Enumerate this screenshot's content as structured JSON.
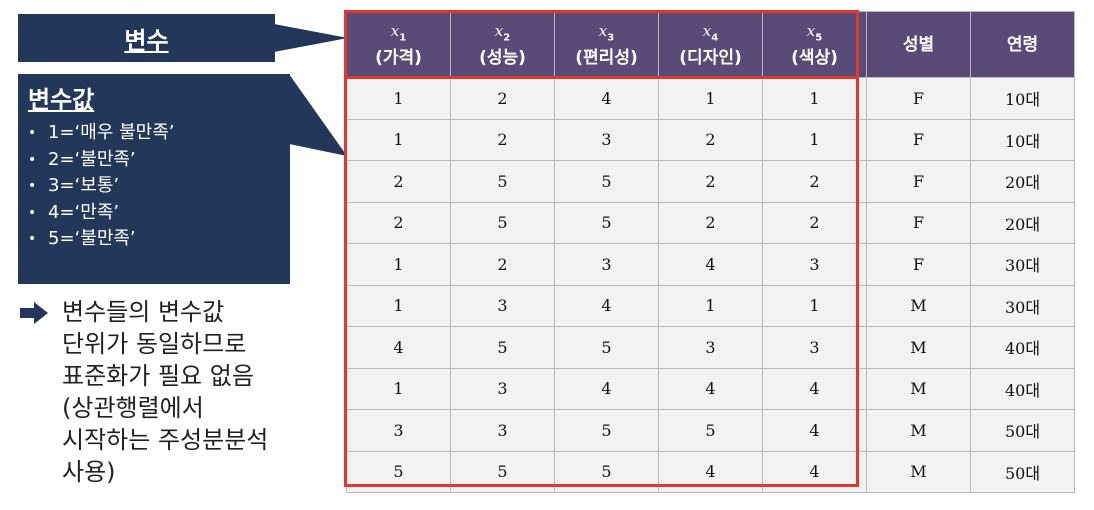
{
  "callouts": {
    "variable_title": "변수",
    "values_title": "변수값",
    "values_items": [
      "1=‘매우 불만족’",
      "2=‘불만족’",
      "3=‘보통’",
      "4=‘만족’",
      "5=‘불만족’"
    ],
    "bullet": "•"
  },
  "note": {
    "text": "변수들의 변수값\n단위가 동일하므로\n표준화가 필요 없음\n(상관행렬에서\n시작하는 주성분분석\n사용)"
  },
  "table": {
    "headers": [
      {
        "symbol": "x",
        "sub": "1",
        "label": "(가격)"
      },
      {
        "symbol": "x",
        "sub": "2",
        "label": "(성능)"
      },
      {
        "symbol": "x",
        "sub": "3",
        "label": "(편리성)"
      },
      {
        "symbol": "x",
        "sub": "4",
        "label": "(디자인)"
      },
      {
        "symbol": "x",
        "sub": "5",
        "label": "(색상)"
      },
      {
        "symbol": "",
        "sub": "",
        "label": "성별"
      },
      {
        "symbol": "",
        "sub": "",
        "label": "연령"
      }
    ],
    "rows": [
      [
        "1",
        "2",
        "4",
        "1",
        "1",
        "F",
        "10대"
      ],
      [
        "1",
        "2",
        "3",
        "2",
        "1",
        "F",
        "10대"
      ],
      [
        "2",
        "5",
        "5",
        "2",
        "2",
        "F",
        "20대"
      ],
      [
        "2",
        "5",
        "5",
        "2",
        "2",
        "F",
        "20대"
      ],
      [
        "1",
        "2",
        "3",
        "4",
        "3",
        "F",
        "30대"
      ],
      [
        "1",
        "3",
        "4",
        "1",
        "1",
        "M",
        "30대"
      ],
      [
        "4",
        "5",
        "5",
        "3",
        "3",
        "M",
        "40대"
      ],
      [
        "1",
        "3",
        "4",
        "4",
        "4",
        "M",
        "40대"
      ],
      [
        "3",
        "3",
        "5",
        "5",
        "4",
        "M",
        "50대"
      ],
      [
        "5",
        "5",
        "5",
        "4",
        "4",
        "M",
        "50대"
      ]
    ]
  },
  "colors": {
    "callout_bg": "#22375a",
    "header_bg": "#5a4a78",
    "cell_bg": "#f2f2f2",
    "highlight": "#e0392b"
  }
}
